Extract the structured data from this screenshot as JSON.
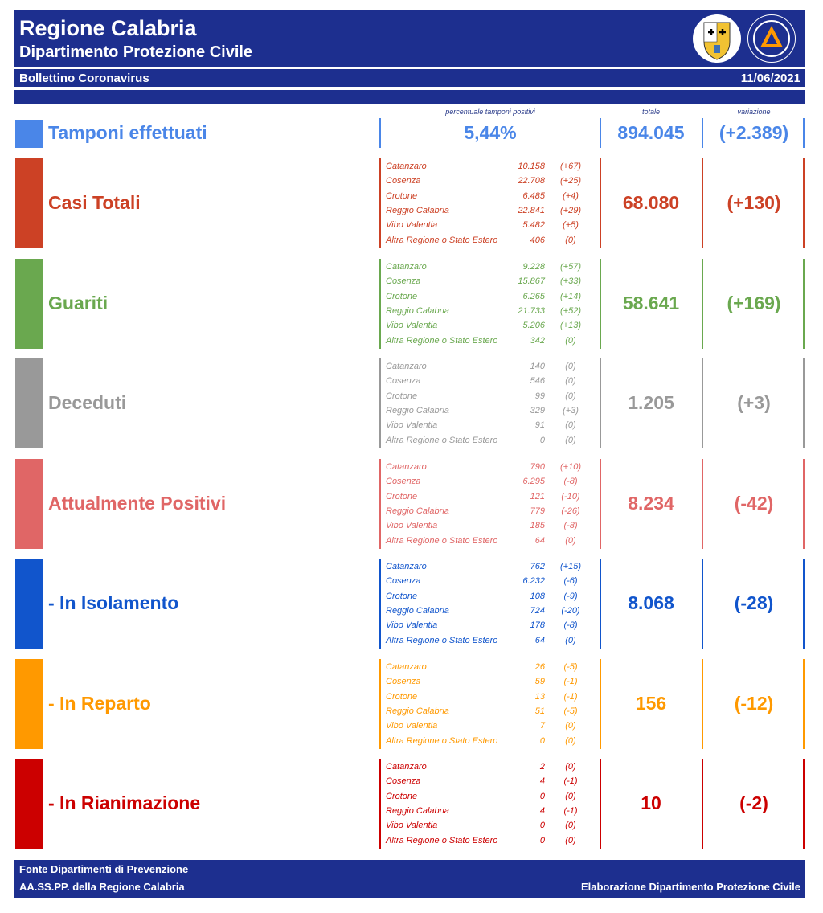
{
  "header": {
    "title": "Regione Calabria",
    "subtitle": "Dipartimento Protezione Civile",
    "bulletin_label": "Bollettino Coronavirus",
    "date": "11/06/2021"
  },
  "columns": {
    "pct_label": "percentuale tamponi positivi",
    "total_label": "totale",
    "variation_label": "variazione"
  },
  "tamponi": {
    "title": "Tamponi effettuati",
    "percent": "5,44%",
    "total": "894.045",
    "variation": "(+2.389)",
    "color": "#4a86e8"
  },
  "sections": [
    {
      "title": "Casi Totali",
      "color": "#cc4125",
      "total": "68.080",
      "variation": "(+130)",
      "provinces": [
        {
          "name": "Catanzaro",
          "value": "10.158",
          "delta": "(+67)"
        },
        {
          "name": "Cosenza",
          "value": "22.708",
          "delta": "(+25)"
        },
        {
          "name": "Crotone",
          "value": "6.485",
          "delta": "(+4)"
        },
        {
          "name": "Reggio Calabria",
          "value": "22.841",
          "delta": "(+29)"
        },
        {
          "name": "Vibo Valentia",
          "value": "5.482",
          "delta": "(+5)"
        },
        {
          "name": "Altra Regione o Stato Estero",
          "value": "406",
          "delta": "(0)"
        }
      ]
    },
    {
      "title": "Guariti",
      "color": "#6aa84f",
      "total": "58.641",
      "variation": "(+169)",
      "provinces": [
        {
          "name": "Catanzaro",
          "value": "9.228",
          "delta": "(+57)"
        },
        {
          "name": "Cosenza",
          "value": "15.867",
          "delta": "(+33)"
        },
        {
          "name": "Crotone",
          "value": "6.265",
          "delta": "(+14)"
        },
        {
          "name": "Reggio Calabria",
          "value": "21.733",
          "delta": "(+52)"
        },
        {
          "name": "Vibo Valentia",
          "value": "5.206",
          "delta": "(+13)"
        },
        {
          "name": "Altra Regione o Stato Estero",
          "value": "342",
          "delta": "(0)"
        }
      ]
    },
    {
      "title": "Deceduti",
      "color": "#999999",
      "total": "1.205",
      "variation": "(+3)",
      "provinces": [
        {
          "name": "Catanzaro",
          "value": "140",
          "delta": "(0)"
        },
        {
          "name": "Cosenza",
          "value": "546",
          "delta": "(0)"
        },
        {
          "name": "Crotone",
          "value": "99",
          "delta": "(0)"
        },
        {
          "name": "Reggio Calabria",
          "value": "329",
          "delta": "(+3)"
        },
        {
          "name": "Vibo Valentia",
          "value": "91",
          "delta": "(0)"
        },
        {
          "name": "Altra Regione o Stato Estero",
          "value": "0",
          "delta": "(0)"
        }
      ]
    },
    {
      "title": "Attualmente Positivi",
      "color": "#e06666",
      "total": "8.234",
      "variation": "(-42)",
      "provinces": [
        {
          "name": "Catanzaro",
          "value": "790",
          "delta": "(+10)"
        },
        {
          "name": "Cosenza",
          "value": "6.295",
          "delta": "(-8)"
        },
        {
          "name": "Crotone",
          "value": "121",
          "delta": "(-10)"
        },
        {
          "name": "Reggio Calabria",
          "value": "779",
          "delta": "(-26)"
        },
        {
          "name": "Vibo Valentia",
          "value": "185",
          "delta": "(-8)"
        },
        {
          "name": "Altra Regione o Stato Estero",
          "value": "64",
          "delta": "(0)"
        }
      ]
    },
    {
      "title": " - In Isolamento",
      "color": "#1155cc",
      "total": "8.068",
      "variation": "(-28)",
      "provinces": [
        {
          "name": "Catanzaro",
          "value": "762",
          "delta": "(+15)"
        },
        {
          "name": "Cosenza",
          "value": "6.232",
          "delta": "(-6)"
        },
        {
          "name": "Crotone",
          "value": "108",
          "delta": "(-9)"
        },
        {
          "name": "Reggio Calabria",
          "value": "724",
          "delta": "(-20)"
        },
        {
          "name": "Vibo Valentia",
          "value": "178",
          "delta": "(-8)"
        },
        {
          "name": "Altra Regione o Stato Estero",
          "value": "64",
          "delta": "(0)"
        }
      ]
    },
    {
      "title": " - In Reparto",
      "color": "#ff9900",
      "total": "156",
      "variation": "(-12)",
      "provinces": [
        {
          "name": "Catanzaro",
          "value": "26",
          "delta": "(-5)"
        },
        {
          "name": "Cosenza",
          "value": "59",
          "delta": "(-1)"
        },
        {
          "name": "Crotone",
          "value": "13",
          "delta": "(-1)"
        },
        {
          "name": "Reggio Calabria",
          "value": "51",
          "delta": "(-5)"
        },
        {
          "name": "Vibo Valentia",
          "value": "7",
          "delta": "(0)"
        },
        {
          "name": "Altra Regione o Stato Estero",
          "value": "0",
          "delta": "(0)"
        }
      ]
    },
    {
      "title": " - In Rianimazione",
      "color": "#cc0000",
      "total": "10",
      "variation": "(-2)",
      "provinces": [
        {
          "name": "Catanzaro",
          "value": "2",
          "delta": "(0)"
        },
        {
          "name": "Cosenza",
          "value": "4",
          "delta": "(-1)"
        },
        {
          "name": "Crotone",
          "value": "0",
          "delta": "(0)"
        },
        {
          "name": "Reggio Calabria",
          "value": "4",
          "delta": "(-1)"
        },
        {
          "name": "Vibo Valentia",
          "value": "0",
          "delta": "(0)"
        },
        {
          "name": "Altra Regione o Stato Estero",
          "value": "0",
          "delta": "(0)"
        }
      ]
    }
  ],
  "footer": {
    "line1": "Fonte Dipartimenti di Prevenzione",
    "line2": "AA.SS.PP.  della Regione Calabria",
    "right": "Elaborazione Dipartimento Protezione Civile"
  },
  "icons": {
    "logo_left": "calabria-coat-of-arms-icon",
    "logo_right": "protezione-civile-logo-icon"
  }
}
